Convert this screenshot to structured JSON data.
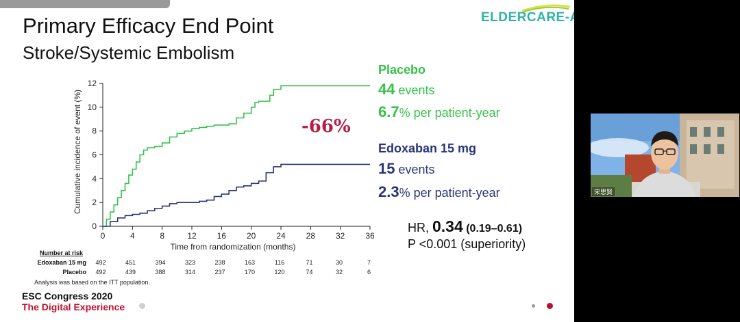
{
  "slide": {
    "title": "Primary Efficacy End Point",
    "subtitle": "Stroke/Systemic Embolism",
    "logo_text": "ELDERCARE-AF",
    "reduction_label": "-66%",
    "legend": {
      "placebo": {
        "name": "Placebo",
        "events_number": "44",
        "events_word": " events",
        "rate_number": "6.7",
        "rate_text": "% per patient-year"
      },
      "edoxaban": {
        "name": "Edoxaban 15 mg",
        "events_number": "15",
        "events_word": " events",
        "rate_number": "2.3",
        "rate_text": "% per patient-year"
      }
    },
    "hr": {
      "prefix": "HR, ",
      "value": "0.34",
      "ci": " (0.19–0.61)"
    },
    "p_value": "P <0.001 (superiority)",
    "number_at_risk": {
      "header": "Number at risk",
      "rows": [
        {
          "label": "Edoxaban 15 mg",
          "values": [
            "492",
            "451",
            "394",
            "323",
            "238",
            "163",
            "116",
            "71",
            "30",
            "7"
          ]
        },
        {
          "label": "Placebo",
          "values": [
            "492",
            "439",
            "388",
            "314",
            "237",
            "170",
            "120",
            "74",
            "32",
            "6"
          ]
        }
      ]
    },
    "footnote": "Analysis was based on the ITT population.",
    "conference_line1": "ESC Congress 2020",
    "conference_line2": "The Digital Experience",
    "colors": {
      "placebo": "#35c24a",
      "edoxaban": "#283578",
      "reduction": "#b41f45",
      "conference_accent": "#c0112b"
    }
  },
  "webcam": {
    "name_tag": "宋思賢"
  },
  "chart_data": {
    "type": "line",
    "title": "Stroke/Systemic Embolism",
    "xlabel": "Time from randomization (months)",
    "ylabel": "Cumulative incidence of event (%)",
    "xlim": [
      0,
      36
    ],
    "ylim": [
      0,
      12
    ],
    "xticks": [
      0,
      4,
      8,
      12,
      16,
      20,
      24,
      28,
      32,
      36
    ],
    "yticks": [
      0,
      2,
      4,
      6,
      8,
      10,
      12
    ],
    "series": [
      {
        "name": "Placebo",
        "color": "#35c24a",
        "x": [
          0,
          0.5,
          1,
          1.5,
          2,
          2.5,
          3,
          3.5,
          4,
          4.5,
          5,
          5.5,
          6,
          7,
          8,
          9,
          10,
          11,
          12,
          13,
          14,
          15,
          16,
          17,
          18,
          19,
          20,
          20.5,
          21,
          22,
          22.5,
          23,
          24,
          36
        ],
        "y": [
          0,
          0.6,
          1.2,
          1.8,
          2.4,
          3.0,
          3.6,
          4.3,
          4.8,
          5.4,
          6.0,
          6.4,
          6.6,
          6.7,
          7.0,
          7.5,
          7.8,
          8.0,
          8.2,
          8.3,
          8.4,
          8.5,
          8.5,
          8.6,
          9.1,
          9.5,
          10.0,
          10.4,
          10.5,
          10.5,
          11.0,
          11.5,
          11.8,
          11.8
        ]
      },
      {
        "name": "Edoxaban 15 mg",
        "color": "#283578",
        "x": [
          0,
          1,
          2,
          3,
          4,
          5,
          6,
          7,
          8,
          9,
          10,
          11,
          12,
          13,
          14,
          15,
          16,
          17,
          18,
          19,
          20,
          21,
          22,
          23,
          24,
          36
        ],
        "y": [
          0,
          0.4,
          0.7,
          0.9,
          1.0,
          1.1,
          1.3,
          1.5,
          1.7,
          1.9,
          2.0,
          2.0,
          2.0,
          2.1,
          2.2,
          2.5,
          2.7,
          3.0,
          3.3,
          3.4,
          3.6,
          3.8,
          4.5,
          5.0,
          5.2,
          5.2
        ]
      }
    ]
  }
}
